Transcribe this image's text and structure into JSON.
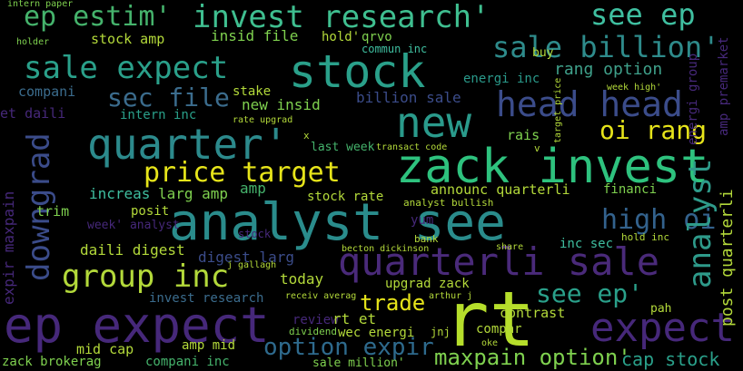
{
  "colors": {
    "background": "#000000",
    "teal": "#2a9a8b",
    "green": "#45b36c",
    "lime": "#b3d93a",
    "yellow": "#e6e41a",
    "blue": "#33628d",
    "indigo": "#3b4c8a",
    "purple": "#46287a",
    "aqua": "#3fbfa0",
    "lightgreen": "#7fd14f"
  },
  "words": [
    {
      "text": "analyst see",
      "color": "#2a8c8c"
    },
    {
      "text": "stock",
      "color": "#2aa08a"
    },
    {
      "text": "zack invest",
      "color": "#2ec27e"
    },
    {
      "text": "rt",
      "color": "#b6de2b"
    },
    {
      "text": "ep expect",
      "color": "#46287a"
    },
    {
      "text": "new",
      "color": "#2a9a8b"
    },
    {
      "text": "quarter'",
      "color": "#2c8a8c"
    },
    {
      "text": "head head",
      "color": "#3b4c8a"
    },
    {
      "text": "quarterli sale",
      "color": "#4a2a7a"
    },
    {
      "text": "ep estim'",
      "color": "#45b36c"
    },
    {
      "text": "invest research'",
      "color": "#3fbf90"
    },
    {
      "text": "see ep",
      "color": "#3fbfa0"
    },
    {
      "text": "sale billion'",
      "color": "#2e8b8b"
    },
    {
      "text": "sale expect",
      "color": "#2aa08a"
    },
    {
      "text": "group inc",
      "color": "#b3d93a"
    },
    {
      "text": "price target",
      "color": "#e6e41a"
    },
    {
      "text": "downgrad",
      "color": "#3b4c8a"
    },
    {
      "text": "expect",
      "color": "#46287a"
    },
    {
      "text": "high oi",
      "color": "#33628d"
    },
    {
      "text": "analyst",
      "color": "#2e9a8a"
    },
    {
      "text": "oi rang",
      "color": "#e6e41a"
    },
    {
      "text": "sec file",
      "color": "#3b6c8d"
    },
    {
      "text": "see ep'",
      "color": "#2aa08a"
    },
    {
      "text": "option expir",
      "color": "#2e6a8d"
    },
    {
      "text": "maxpain option'",
      "color": "#7fd14f"
    },
    {
      "text": "cap stock",
      "color": "#2aa08a"
    },
    {
      "text": "post quarterli",
      "color": "#b3d93a"
    },
    {
      "text": "trade",
      "color": "#e6e41a"
    },
    {
      "text": "expir maxpain",
      "color": "#46287a"
    },
    {
      "text": "rang option",
      "color": "#3fa08a"
    },
    {
      "text": "insid file",
      "color": "#7fd14f"
    },
    {
      "text": "stock amp",
      "color": "#b3d93a"
    },
    {
      "text": "compani",
      "color": "#3b6c8d"
    },
    {
      "text": "billion sale",
      "color": "#3b4c8a"
    },
    {
      "text": "energi inc",
      "color": "#2a9a8b"
    },
    {
      "text": "new insid",
      "color": "#7fd14f"
    },
    {
      "text": "intern inc",
      "color": "#2aa08a"
    },
    {
      "text": "stake",
      "color": "#b3d93a"
    },
    {
      "text": "rais",
      "color": "#7fd14f"
    },
    {
      "text": "last week",
      "color": "#45b36c"
    },
    {
      "text": "increas",
      "color": "#3fbfa0"
    },
    {
      "text": "larg amp",
      "color": "#7fd14f"
    },
    {
      "text": "posit",
      "color": "#b3d93a"
    },
    {
      "text": "stock rate",
      "color": "#b3d93a"
    },
    {
      "text": "announc quarterli",
      "color": "#b3d93a"
    },
    {
      "text": "financi",
      "color": "#7fd14f"
    },
    {
      "text": "amp",
      "color": "#45b36c"
    },
    {
      "text": "daili digest",
      "color": "#b3d93a"
    },
    {
      "text": "digest larg",
      "color": "#3b4c8a"
    },
    {
      "text": "inc sec",
      "color": "#3fbfa0"
    },
    {
      "text": "today",
      "color": "#b3d93a"
    },
    {
      "text": "upgrad zack",
      "color": "#b3d93a"
    },
    {
      "text": "invest research",
      "color": "#3b6c8d"
    },
    {
      "text": "review",
      "color": "#46287a"
    },
    {
      "text": "rt et",
      "color": "#b3d93a"
    },
    {
      "text": "wec energi",
      "color": "#b3d93a"
    },
    {
      "text": "mid cap",
      "color": "#b3d93a"
    },
    {
      "text": "amp mid",
      "color": "#b3d93a"
    },
    {
      "text": "compani inc",
      "color": "#45b36c"
    },
    {
      "text": "zack brokerag",
      "color": "#7fd14f"
    },
    {
      "text": "sale million'",
      "color": "#7fd14f"
    },
    {
      "text": "contrast",
      "color": "#b3d93a"
    },
    {
      "text": "compar",
      "color": "#b3d93a"
    },
    {
      "text": "trim",
      "color": "#7fd14f"
    },
    {
      "text": "week' analyst",
      "color": "#46287a"
    },
    {
      "text": "hold'",
      "color": "#b3d93a"
    },
    {
      "text": "qrvo",
      "color": "#7fd14f"
    },
    {
      "text": "commun inc",
      "color": "#3fbfa0"
    },
    {
      "text": "et daili",
      "color": "#46287a"
    },
    {
      "text": "yum",
      "color": "#46287a"
    },
    {
      "text": "amp premarket",
      "color": "#46287a"
    },
    {
      "text": "energi group",
      "color": "#46287a"
    },
    {
      "text": "analyst bullish",
      "color": "#b3d93a"
    },
    {
      "text": "buy",
      "color": "#b3d93a"
    },
    {
      "text": "pah",
      "color": "#b3d93a"
    },
    {
      "text": "jnj",
      "color": "#b3d93a"
    },
    {
      "text": "bank",
      "color": "#b3d93a"
    },
    {
      "text": "dividend",
      "color": "#7fd14f"
    },
    {
      "text": "holder",
      "color": "#7fd14f"
    },
    {
      "text": "intern paper",
      "color": "#7fd14f"
    },
    {
      "text": "week high'",
      "color": "#b3d93a"
    },
    {
      "text": "hold inc",
      "color": "#b3d93a"
    },
    {
      "text": "becton dickinson",
      "color": "#b3d93a"
    },
    {
      "text": "stock",
      "color": "#46287a"
    },
    {
      "text": "x",
      "color": "#b3d93a"
    },
    {
      "text": "v",
      "color": "#b3d93a"
    },
    {
      "text": "share",
      "color": "#b3d93a"
    },
    {
      "text": "rate upgrad",
      "color": "#b3d93a"
    },
    {
      "text": "target price",
      "color": "#b3d93a"
    },
    {
      "text": "transact code",
      "color": "#b3d93a"
    },
    {
      "text": "oke",
      "color": "#b3d93a"
    },
    {
      "text": "arthur j",
      "color": "#b3d93a"
    },
    {
      "text": "j gallagh",
      "color": "#b3d93a"
    },
    {
      "text": "receiv averag",
      "color": "#b3d93a"
    }
  ]
}
